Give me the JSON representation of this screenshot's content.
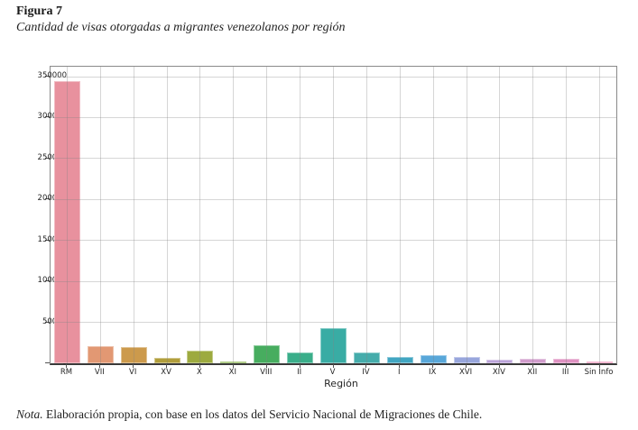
{
  "figure": {
    "label": "Figura 7",
    "subtitle": "Cantidad de visas otorgadas a migrantes venezolanos por región",
    "note_prefix": "Nota.",
    "note_text": " Elaboración propia, con base en los datos del Servicio Nacional de Migraciones de Chile."
  },
  "chart_data": {
    "type": "bar",
    "title": "Cantidad de visas otorgadas a migrantes venezolanos por región",
    "xlabel": "Región",
    "ylabel": "",
    "ylim": [
      0,
      350000
    ],
    "yticks": [
      0,
      50000,
      100000,
      150000,
      200000,
      250000,
      300000,
      350000
    ],
    "grid": true,
    "legend": "none",
    "categories": [
      "RM",
      "VII",
      "VI",
      "XV",
      "X",
      "XI",
      "VIII",
      "II",
      "V",
      "IV",
      "I",
      "IX",
      "XVI",
      "XIV",
      "XII",
      "III",
      "Sin Info"
    ],
    "values": [
      345000,
      21000,
      19500,
      6500,
      15000,
      2500,
      22000,
      13000,
      43000,
      13000,
      8000,
      10000,
      7500,
      4000,
      5000,
      6000,
      300
    ],
    "bar_colors": [
      "#e8919e",
      "#e29873",
      "#cc9a4c",
      "#b19e3b",
      "#9daa3f",
      "#7fae3e",
      "#47ad5f",
      "#3aae8a",
      "#39aca4",
      "#45acab",
      "#41a6c2",
      "#58a7d9",
      "#98a6dc",
      "#bba3d9",
      "#d19dcc",
      "#df92c2",
      "#ec8bb4"
    ]
  },
  "style": {
    "plot_border_color": "#8a8a8a",
    "bottom_spine_color": "#3a3a3a",
    "grid_color": "#cfcfcf",
    "text_color": "#262626"
  }
}
